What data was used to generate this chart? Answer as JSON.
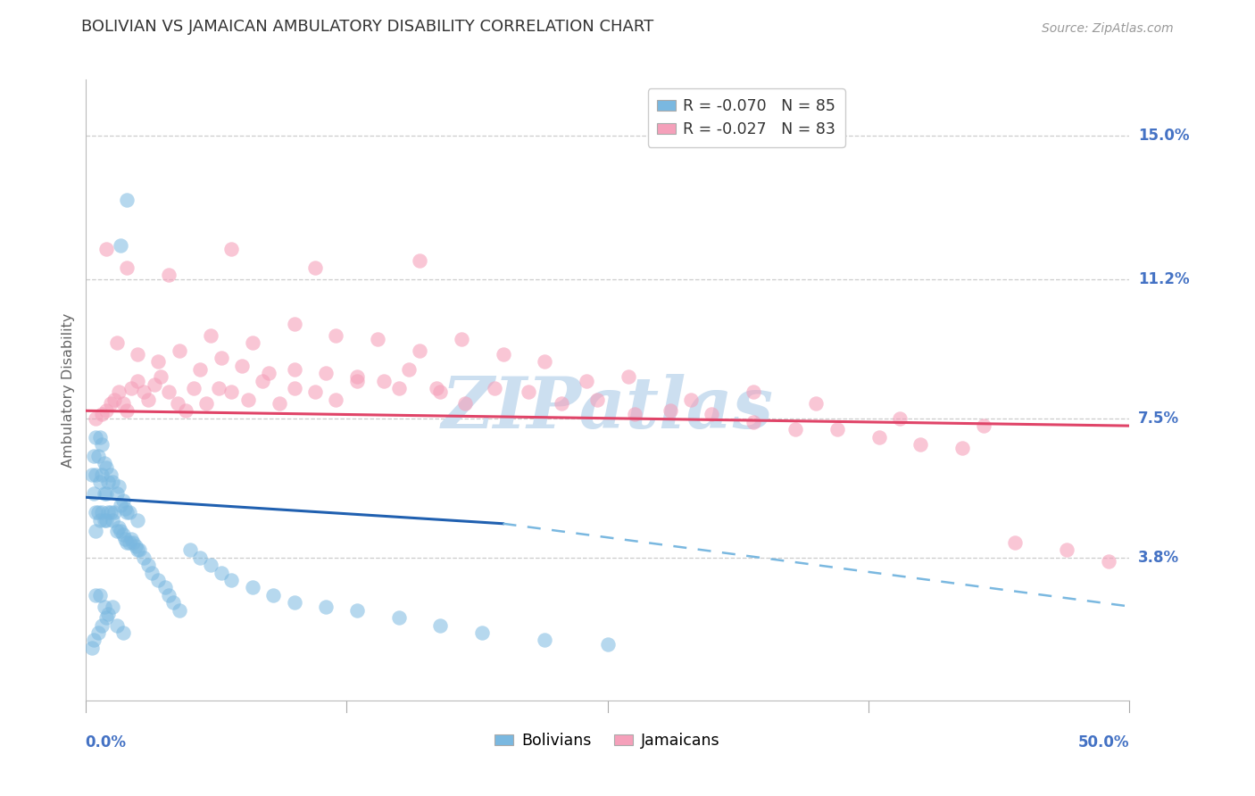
{
  "title": "BOLIVIAN VS JAMAICAN AMBULATORY DISABILITY CORRELATION CHART",
  "source": "Source: ZipAtlas.com",
  "ylabel": "Ambulatory Disability",
  "xlim": [
    0.0,
    0.5
  ],
  "ylim": [
    0.0,
    0.165
  ],
  "ytick_labels": [
    "3.8%",
    "7.5%",
    "11.2%",
    "15.0%"
  ],
  "ytick_values": [
    0.038,
    0.075,
    0.112,
    0.15
  ],
  "xtick_left": "0.0%",
  "xtick_right": "50.0%",
  "blue_color": "#7ab8e0",
  "pink_color": "#f5a0ba",
  "trend_blue_solid_color": "#2060b0",
  "trend_blue_dash_color": "#7ab8e0",
  "trend_pink_color": "#e04468",
  "background_color": "#ffffff",
  "grid_color": "#cccccc",
  "title_color": "#333333",
  "axis_label_color": "#666666",
  "tick_color": "#4472c4",
  "watermark_color": "#ccdff0",
  "legend1_r": "R = -0.070",
  "legend1_n": "N = 85",
  "legend2_r": "R = -0.027",
  "legend2_n": "N = 83",
  "legend_label1": "Bolivians",
  "legend_label2": "Jamaicans",
  "blue_trend_x0": 0.0,
  "blue_trend_y0": 0.054,
  "blue_trend_x_split": 0.2,
  "blue_trend_y_split": 0.047,
  "blue_trend_x1": 0.5,
  "blue_trend_y1": 0.025,
  "pink_trend_x0": 0.0,
  "pink_trend_y0": 0.077,
  "pink_trend_x1": 0.5,
  "pink_trend_y1": 0.073,
  "blue_x": [
    0.003,
    0.004,
    0.004,
    0.005,
    0.005,
    0.005,
    0.005,
    0.006,
    0.006,
    0.007,
    0.007,
    0.007,
    0.008,
    0.008,
    0.008,
    0.009,
    0.009,
    0.009,
    0.01,
    0.01,
    0.01,
    0.011,
    0.011,
    0.012,
    0.012,
    0.013,
    0.013,
    0.014,
    0.015,
    0.015,
    0.016,
    0.016,
    0.017,
    0.017,
    0.018,
    0.018,
    0.019,
    0.019,
    0.02,
    0.02,
    0.021,
    0.021,
    0.022,
    0.023,
    0.024,
    0.025,
    0.025,
    0.026,
    0.028,
    0.03,
    0.032,
    0.035,
    0.038,
    0.04,
    0.042,
    0.045,
    0.05,
    0.055,
    0.06,
    0.065,
    0.07,
    0.08,
    0.09,
    0.1,
    0.115,
    0.13,
    0.15,
    0.17,
    0.19,
    0.22,
    0.25,
    0.02,
    0.017,
    0.013,
    0.01,
    0.008,
    0.006,
    0.004,
    0.003,
    0.005,
    0.007,
    0.009,
    0.011,
    0.015,
    0.018
  ],
  "blue_y": [
    0.06,
    0.055,
    0.065,
    0.045,
    0.05,
    0.06,
    0.07,
    0.05,
    0.065,
    0.048,
    0.058,
    0.07,
    0.05,
    0.06,
    0.068,
    0.048,
    0.055,
    0.063,
    0.048,
    0.055,
    0.062,
    0.05,
    0.058,
    0.05,
    0.06,
    0.048,
    0.058,
    0.05,
    0.045,
    0.055,
    0.046,
    0.057,
    0.045,
    0.052,
    0.044,
    0.053,
    0.043,
    0.051,
    0.042,
    0.05,
    0.042,
    0.05,
    0.043,
    0.042,
    0.041,
    0.04,
    0.048,
    0.04,
    0.038,
    0.036,
    0.034,
    0.032,
    0.03,
    0.028,
    0.026,
    0.024,
    0.04,
    0.038,
    0.036,
    0.034,
    0.032,
    0.03,
    0.028,
    0.026,
    0.025,
    0.024,
    0.022,
    0.02,
    0.018,
    0.016,
    0.015,
    0.133,
    0.121,
    0.025,
    0.022,
    0.02,
    0.018,
    0.016,
    0.014,
    0.028,
    0.028,
    0.025,
    0.023,
    0.02,
    0.018
  ],
  "pink_x": [
    0.005,
    0.008,
    0.01,
    0.012,
    0.014,
    0.016,
    0.018,
    0.02,
    0.022,
    0.025,
    0.028,
    0.03,
    0.033,
    0.036,
    0.04,
    0.044,
    0.048,
    0.052,
    0.058,
    0.064,
    0.07,
    0.078,
    0.085,
    0.093,
    0.1,
    0.11,
    0.12,
    0.13,
    0.143,
    0.155,
    0.168,
    0.182,
    0.196,
    0.212,
    0.228,
    0.245,
    0.263,
    0.28,
    0.3,
    0.32,
    0.34,
    0.36,
    0.38,
    0.4,
    0.42,
    0.445,
    0.47,
    0.49,
    0.015,
    0.025,
    0.035,
    0.045,
    0.055,
    0.065,
    0.075,
    0.088,
    0.1,
    0.115,
    0.13,
    0.15,
    0.17,
    0.06,
    0.08,
    0.1,
    0.12,
    0.14,
    0.16,
    0.18,
    0.2,
    0.22,
    0.24,
    0.26,
    0.29,
    0.32,
    0.35,
    0.39,
    0.43,
    0.01,
    0.02,
    0.04,
    0.07,
    0.11,
    0.16
  ],
  "pink_y": [
    0.075,
    0.076,
    0.077,
    0.079,
    0.08,
    0.082,
    0.079,
    0.077,
    0.083,
    0.085,
    0.082,
    0.08,
    0.084,
    0.086,
    0.082,
    0.079,
    0.077,
    0.083,
    0.079,
    0.083,
    0.082,
    0.08,
    0.085,
    0.079,
    0.083,
    0.082,
    0.08,
    0.086,
    0.085,
    0.088,
    0.083,
    0.079,
    0.083,
    0.082,
    0.079,
    0.08,
    0.076,
    0.077,
    0.076,
    0.074,
    0.072,
    0.072,
    0.07,
    0.068,
    0.067,
    0.042,
    0.04,
    0.037,
    0.095,
    0.092,
    0.09,
    0.093,
    0.088,
    0.091,
    0.089,
    0.087,
    0.088,
    0.087,
    0.085,
    0.083,
    0.082,
    0.097,
    0.095,
    0.1,
    0.097,
    0.096,
    0.093,
    0.096,
    0.092,
    0.09,
    0.085,
    0.086,
    0.08,
    0.082,
    0.079,
    0.075,
    0.073,
    0.12,
    0.115,
    0.113,
    0.12,
    0.115,
    0.117
  ]
}
